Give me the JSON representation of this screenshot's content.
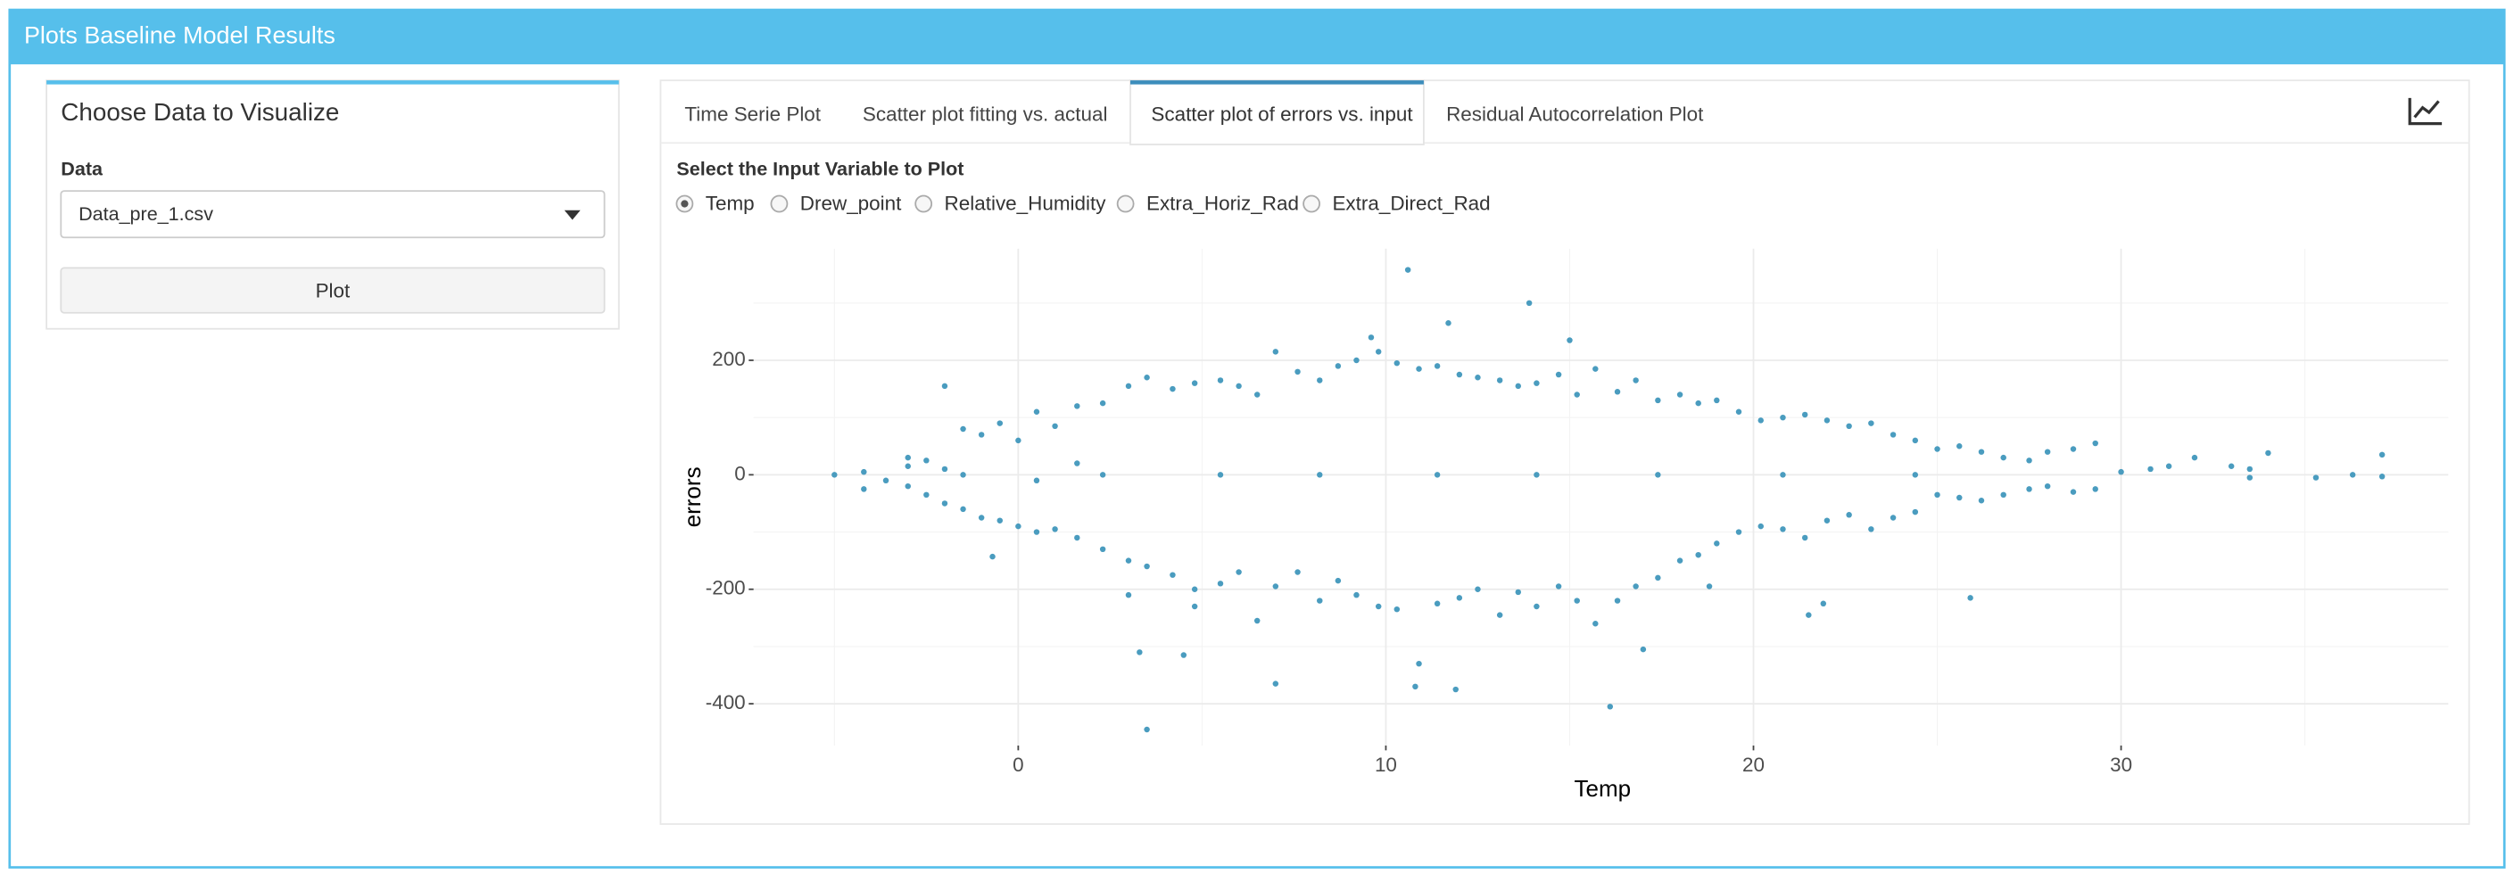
{
  "header": {
    "title": "Plots Baseline Model Results"
  },
  "sidebar": {
    "title": "Choose Data to Visualize",
    "data_label": "Data",
    "selected_file": "Data_pre_1.csv",
    "button": "Plot"
  },
  "tabs": [
    {
      "label": "Time Serie Plot",
      "active": false
    },
    {
      "label": "Scatter plot fitting vs. actual",
      "active": false
    },
    {
      "label": "Scatter plot of errors vs. input",
      "active": true
    },
    {
      "label": "Residual Autocorrelation Plot",
      "active": false
    }
  ],
  "input_prompt": "Select the Input Variable to Plot",
  "radios": [
    {
      "label": "Temp",
      "selected": true
    },
    {
      "label": "Drew_point",
      "selected": false
    },
    {
      "label": "Relative_Humidity",
      "selected": false
    },
    {
      "label": "Extra_Horiz_Rad",
      "selected": false
    },
    {
      "label": "Extra_Direct_Rad",
      "selected": false
    }
  ],
  "chart_data": {
    "type": "scatter",
    "x_label": "Temp",
    "y_label": "errors",
    "color": "#4a9cbf",
    "grid": true,
    "xlim": [
      -7.2,
      38.9
    ],
    "ylim": [
      -473,
      395
    ],
    "xticks": [
      0,
      10,
      20,
      30
    ],
    "yticks": [
      -400,
      -200,
      0,
      200
    ],
    "x_minor_ticks": [
      -5,
      5,
      15,
      25,
      35
    ],
    "y_minor_ticks": [
      -300,
      -100,
      100,
      300
    ],
    "x": [
      -5,
      -4.2,
      -4.2,
      -3.6,
      -3,
      -3,
      -3,
      -2.5,
      -2.5,
      -2,
      -2,
      -2,
      -1.5,
      -1.5,
      -1.5,
      -1,
      -1,
      -0.7,
      -0.5,
      -0.5,
      0,
      0,
      0.5,
      0.5,
      0.5,
      1,
      1,
      1.6,
      1.6,
      1.6,
      2.3,
      2.3,
      3,
      3,
      3,
      3.3,
      3.5,
      3.5,
      3.5,
      4.2,
      4.2,
      4.5,
      4.8,
      4.8,
      4.8,
      5.5,
      5.5,
      6,
      6,
      6.5,
      6.5,
      7,
      7,
      7,
      7.6,
      7.6,
      8.2,
      8.2,
      8.7,
      8.7,
      9.2,
      9.2,
      9.6,
      9.8,
      9.8,
      10.3,
      10.3,
      10.6,
      10.8,
      10.9,
      10.9,
      11.4,
      11.4,
      11.7,
      11.9,
      12,
      12,
      12.5,
      12.5,
      13.1,
      13.1,
      13.6,
      13.6,
      13.9,
      14.1,
      14.1,
      14.7,
      14.7,
      15,
      15.2,
      15.2,
      15.7,
      15.7,
      16.1,
      16.3,
      16.3,
      16.8,
      16.8,
      17,
      17.4,
      17.4,
      18,
      18,
      18.5,
      18.5,
      18.8,
      19,
      19,
      19.6,
      19.6,
      20.2,
      20.2,
      20.8,
      20.8,
      21.4,
      21.4,
      21.5,
      21.9,
      22,
      22,
      22.6,
      22.6,
      23.2,
      23.2,
      23.8,
      23.8,
      24.4,
      24.4,
      25,
      25,
      25.6,
      25.6,
      25.9,
      26.2,
      26.2,
      26.8,
      26.8,
      27.5,
      27.5,
      28,
      28,
      28.7,
      28.7,
      29.3,
      29.3,
      30,
      30.8,
      31.3,
      32,
      33,
      33.5,
      33.5,
      34,
      35.3,
      36.3,
      37.1,
      37.1,
      2.3,
      5.5,
      8.2,
      11.4,
      14.1,
      17.4,
      20.8,
      24.4
    ],
    "values": [
      0,
      5,
      -25,
      -10,
      15,
      -20,
      30,
      25,
      -35,
      155,
      10,
      -50,
      80,
      -60,
      0,
      70,
      -75,
      -143,
      90,
      -80,
      60,
      -90,
      110,
      -100,
      -10,
      85,
      -95,
      120,
      -110,
      20,
      125,
      -130,
      155,
      -150,
      -210,
      -310,
      170,
      -160,
      -445,
      150,
      -175,
      -315,
      160,
      -200,
      -230,
      165,
      -190,
      155,
      -170,
      140,
      -255,
      215,
      -195,
      -365,
      180,
      -170,
      165,
      -220,
      190,
      -185,
      200,
      -210,
      240,
      215,
      -230,
      195,
      -235,
      358,
      -370,
      185,
      -330,
      190,
      -225,
      265,
      -375,
      175,
      -215,
      170,
      -200,
      165,
      -245,
      155,
      -205,
      300,
      160,
      -230,
      175,
      -195,
      235,
      140,
      -220,
      185,
      -260,
      -405,
      145,
      -220,
      165,
      -195,
      -305,
      130,
      -180,
      140,
      -150,
      125,
      -140,
      -195,
      130,
      -120,
      110,
      -100,
      95,
      -90,
      100,
      -95,
      105,
      -110,
      -245,
      -225,
      95,
      -80,
      85,
      -70,
      90,
      -95,
      70,
      -75,
      60,
      -65,
      45,
      -35,
      50,
      -40,
      -215,
      40,
      -45,
      30,
      -35,
      25,
      -25,
      40,
      -20,
      45,
      -30,
      55,
      -25,
      5,
      10,
      15,
      30,
      15,
      10,
      -5,
      38,
      -5,
      0,
      -3,
      35,
      0,
      0,
      0,
      0,
      0,
      0,
      0,
      0
    ]
  }
}
